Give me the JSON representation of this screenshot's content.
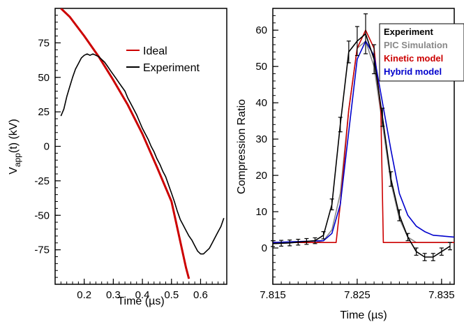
{
  "chart_data": [
    {
      "type": "line",
      "xlabel": "Time (µs)",
      "ylabel": "V",
      "ylabel_sub": "app",
      "ylabel_rest": "(t)  (kV)",
      "xlim": [
        0.1,
        0.69
      ],
      "ylim": [
        -100,
        100
      ],
      "xticks": [
        0.2,
        0.3,
        0.4,
        0.5,
        0.6
      ],
      "xtick_labels": [
        "0.2",
        "0.3",
        "0.4",
        "0.5",
        "0.6"
      ],
      "yticks": [
        75,
        50,
        25,
        0,
        -25,
        -50,
        -75
      ],
      "ytick_labels": [
        "75",
        "50",
        "25",
        "0",
        "-25",
        "-50",
        "-75"
      ],
      "grid": false,
      "legend_position": "top-right",
      "series": [
        {
          "name": "Ideal",
          "color": "#cc0000",
          "x": [
            0.12,
            0.15,
            0.2,
            0.25,
            0.3,
            0.35,
            0.4,
            0.45,
            0.5,
            0.55,
            0.56
          ],
          "y": [
            100,
            94,
            80,
            65,
            48,
            30,
            9,
            -15,
            -40,
            -88,
            -96
          ]
        },
        {
          "name": "Experiment",
          "color": "#000000",
          "x": [
            0.12,
            0.13,
            0.14,
            0.15,
            0.16,
            0.17,
            0.18,
            0.19,
            0.2,
            0.21,
            0.22,
            0.23,
            0.24,
            0.25,
            0.26,
            0.27,
            0.28,
            0.29,
            0.3,
            0.31,
            0.32,
            0.33,
            0.34,
            0.35,
            0.36,
            0.37,
            0.38,
            0.39,
            0.4,
            0.41,
            0.42,
            0.43,
            0.44,
            0.45,
            0.46,
            0.47,
            0.48,
            0.49,
            0.5,
            0.51,
            0.52,
            0.53,
            0.54,
            0.55,
            0.56,
            0.57,
            0.58,
            0.59,
            0.6,
            0.61,
            0.62,
            0.63,
            0.64,
            0.65,
            0.66,
            0.67,
            0.68
          ],
          "y": [
            22,
            27,
            36,
            43,
            50,
            56,
            60,
            64,
            66,
            67,
            66,
            67,
            66,
            65,
            63,
            61,
            58,
            55,
            52,
            49,
            46,
            43,
            40,
            35,
            31,
            27,
            23,
            18,
            13,
            9,
            5,
            0,
            -4,
            -9,
            -13,
            -18,
            -22,
            -28,
            -34,
            -40,
            -47,
            -53,
            -57,
            -61,
            -65,
            -68,
            -72,
            -76,
            -78,
            -78,
            -76,
            -74,
            -70,
            -66,
            -62,
            -58,
            -52
          ]
        }
      ]
    },
    {
      "type": "line",
      "xlabel": "Time (µs)",
      "ylabel": "Compression Ratio",
      "xlim": [
        7.815,
        7.8365
      ],
      "ylim": [
        -10,
        66
      ],
      "xticks": [
        7.815,
        7.825,
        7.835
      ],
      "xtick_labels": [
        "7.815",
        "7.825",
        "7.835"
      ],
      "yticks": [
        0,
        10,
        20,
        30,
        40,
        50,
        60
      ],
      "ytick_labels": [
        "0",
        "10",
        "20",
        "30",
        "40",
        "50",
        "60"
      ],
      "grid": false,
      "legend_position": "top-right",
      "series": [
        {
          "name": "Experiment",
          "color": "#000000",
          "x": [
            7.815,
            7.816,
            7.817,
            7.818,
            7.819,
            7.82,
            7.821,
            7.822,
            7.823,
            7.824,
            7.825,
            7.826,
            7.827,
            7.828,
            7.829,
            7.83,
            7.831,
            7.832,
            7.833,
            7.834,
            7.835,
            7.836
          ],
          "y": [
            1.2,
            1.3,
            1.4,
            1.6,
            1.8,
            2.0,
            3.5,
            12,
            34,
            54,
            57,
            59,
            52,
            36,
            19,
            9,
            3,
            -1,
            -2.5,
            -2.5,
            -1,
            0.5
          ],
          "err": [
            0.8,
            0.8,
            0.8,
            0.8,
            0.8,
            0.8,
            1,
            1.5,
            2,
            3,
            4,
            5.5,
            4,
            2.5,
            2,
            1.5,
            1,
            1,
            1,
            1,
            1,
            1
          ]
        },
        {
          "name": "PIC Simulation",
          "color": "#888888",
          "x": [
            7.815,
            7.82,
            7.821,
            7.822,
            7.823,
            7.824,
            7.825,
            7.826,
            7.827,
            7.828,
            7.829,
            7.83,
            7.831,
            7.832,
            7.834,
            7.8365
          ],
          "y": [
            1.5,
            1.5,
            2,
            5,
            15,
            38,
            55,
            57,
            50,
            34,
            18,
            8,
            3,
            1.5,
            1.5,
            1.5
          ]
        },
        {
          "name": "Kinetic model",
          "color": "#cc0000",
          "x": [
            7.815,
            7.8225,
            7.823,
            7.824,
            7.825,
            7.826,
            7.827,
            7.8278,
            7.8281,
            7.8365
          ],
          "y": [
            1.5,
            1.5,
            12,
            38,
            55,
            60,
            55,
            38,
            1.5,
            1.5
          ]
        },
        {
          "name": "Hybrid model",
          "color": "#0000cc",
          "x": [
            7.815,
            7.821,
            7.822,
            7.823,
            7.824,
            7.825,
            7.826,
            7.827,
            7.828,
            7.829,
            7.83,
            7.831,
            7.832,
            7.833,
            7.834,
            7.8365
          ],
          "y": [
            1.5,
            2,
            4,
            12,
            32,
            52,
            57,
            53,
            40,
            27,
            15,
            9,
            6,
            4.5,
            3.5,
            3
          ]
        }
      ]
    }
  ],
  "legend_colors": {
    "Experiment": "#000000",
    "PIC Simulation": "#888888",
    "Kinetic model": "#cc0000",
    "Hybrid model": "#0000cc"
  }
}
